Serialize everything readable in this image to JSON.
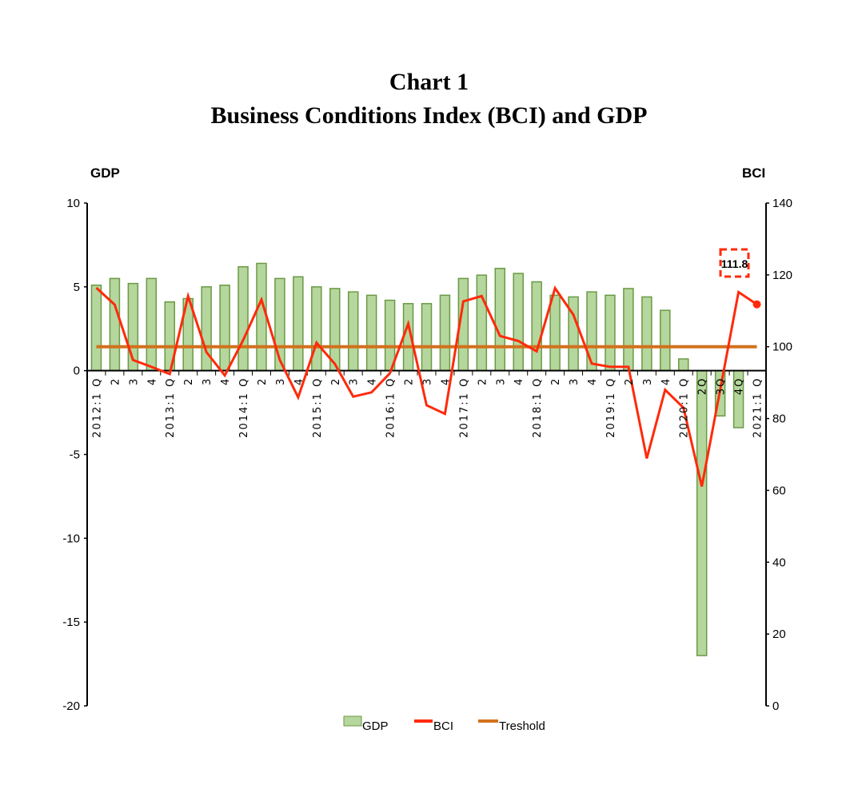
{
  "chart_data": {
    "type": "bar+line",
    "title": "Chart 1",
    "subtitle": "Business Conditions Index (BCI) and GDP",
    "left_axis_title": "GDP",
    "right_axis_title": "BCI",
    "left_ylim": [
      -20,
      10
    ],
    "left_ticks": [
      10,
      5,
      0,
      -5,
      -10,
      -15,
      -20
    ],
    "right_ylim": [
      0,
      140
    ],
    "right_ticks": [
      140,
      120,
      100,
      80,
      60,
      40,
      20,
      0
    ],
    "grid": false,
    "legend_position": "bottom",
    "categories": [
      "2012:1 Q",
      "2",
      "3",
      "4",
      "2013:1 Q",
      "2",
      "3",
      "4",
      "2014:1 Q",
      "2",
      "3",
      "4",
      "2015:1 Q",
      "2",
      "3",
      "4",
      "2016:1 Q",
      "2",
      "3",
      "4",
      "2017:1 Q",
      "2",
      "3",
      "4",
      "2018:1 Q",
      "2",
      "3",
      "4",
      "2019:1 Q",
      "2",
      "3",
      "4",
      "2020:1 Q",
      "2Q",
      "3Q",
      "4Q",
      "2021:1 Q"
    ],
    "series": [
      {
        "name": "GDP",
        "type": "bar",
        "axis": "left",
        "color": "#b5d69c",
        "edge_color": "#6a9a45",
        "values": [
          5.1,
          5.5,
          5.2,
          5.5,
          4.1,
          4.3,
          5.0,
          5.1,
          6.2,
          6.4,
          5.5,
          5.6,
          5.0,
          4.9,
          4.7,
          4.5,
          4.2,
          4.0,
          4.0,
          4.5,
          5.5,
          5.7,
          6.1,
          5.8,
          5.3,
          4.5,
          4.4,
          4.7,
          4.5,
          4.9,
          4.4,
          3.6,
          0.7,
          -17.0,
          -2.7,
          -3.4,
          null
        ]
      },
      {
        "name": "BCI",
        "type": "line",
        "axis": "right",
        "color": "#ff2a0a",
        "values": [
          116.4,
          111.7,
          96.3,
          94.4,
          92.4,
          114.1,
          98.5,
          92.0,
          101.8,
          113.1,
          96.3,
          85.9,
          101.1,
          95.2,
          86.1,
          87.3,
          92.6,
          106.4,
          83.7,
          81.3,
          112.6,
          114.1,
          103.0,
          101.6,
          98.7,
          116.3,
          108.9,
          95.3,
          94.4,
          94.4,
          68.9,
          88.0,
          83.0,
          61.1,
          88.0,
          115.2,
          111.8
        ]
      },
      {
        "name": "Treshold",
        "type": "line",
        "axis": "right",
        "color": "#d2711c",
        "value": 100
      }
    ],
    "annotation": {
      "label": "111.8",
      "category": "2021:1 Q",
      "series": "BCI"
    }
  }
}
